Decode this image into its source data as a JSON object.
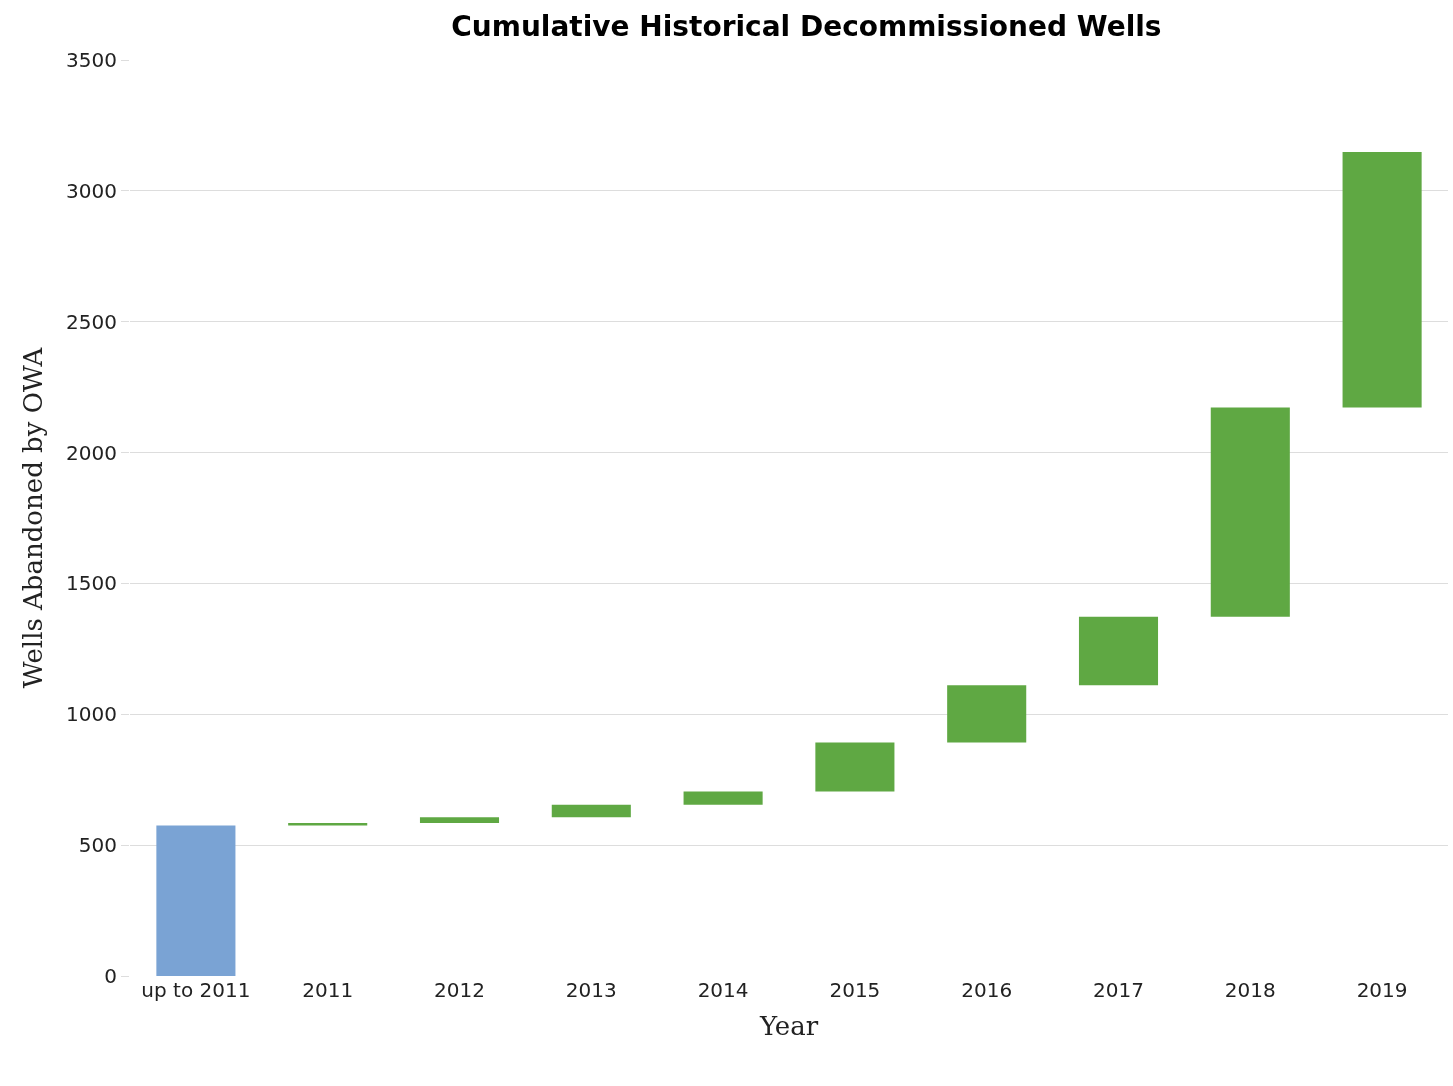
{
  "chart_data": {
    "type": "bar",
    "title": "Cumulative Historical Decommissioned Wells",
    "xlabel": "Year",
    "ylabel": "Wells Abandoned by OWA",
    "categories": [
      "up to 2011",
      "2011",
      "2012",
      "2013",
      "2014",
      "2015",
      "2016",
      "2017",
      "2018",
      "2019"
    ],
    "values": [
      575,
      10,
      22,
      47,
      51,
      187,
      219,
      262,
      799,
      976
    ],
    "base": [
      0,
      575,
      585,
      607,
      654,
      705,
      892,
      1111,
      1373,
      2172
    ],
    "colors": [
      "#7aa3d4",
      "#5fa843",
      "#5fa843",
      "#5fa843",
      "#5fa843",
      "#5fa843",
      "#5fa843",
      "#5fa843",
      "#5fa843",
      "#5fa843"
    ],
    "ylim": [
      0,
      3500
    ],
    "yticks": [
      0,
      500,
      1000,
      1500,
      2000,
      2500,
      3000,
      3500
    ],
    "grid": "y"
  }
}
